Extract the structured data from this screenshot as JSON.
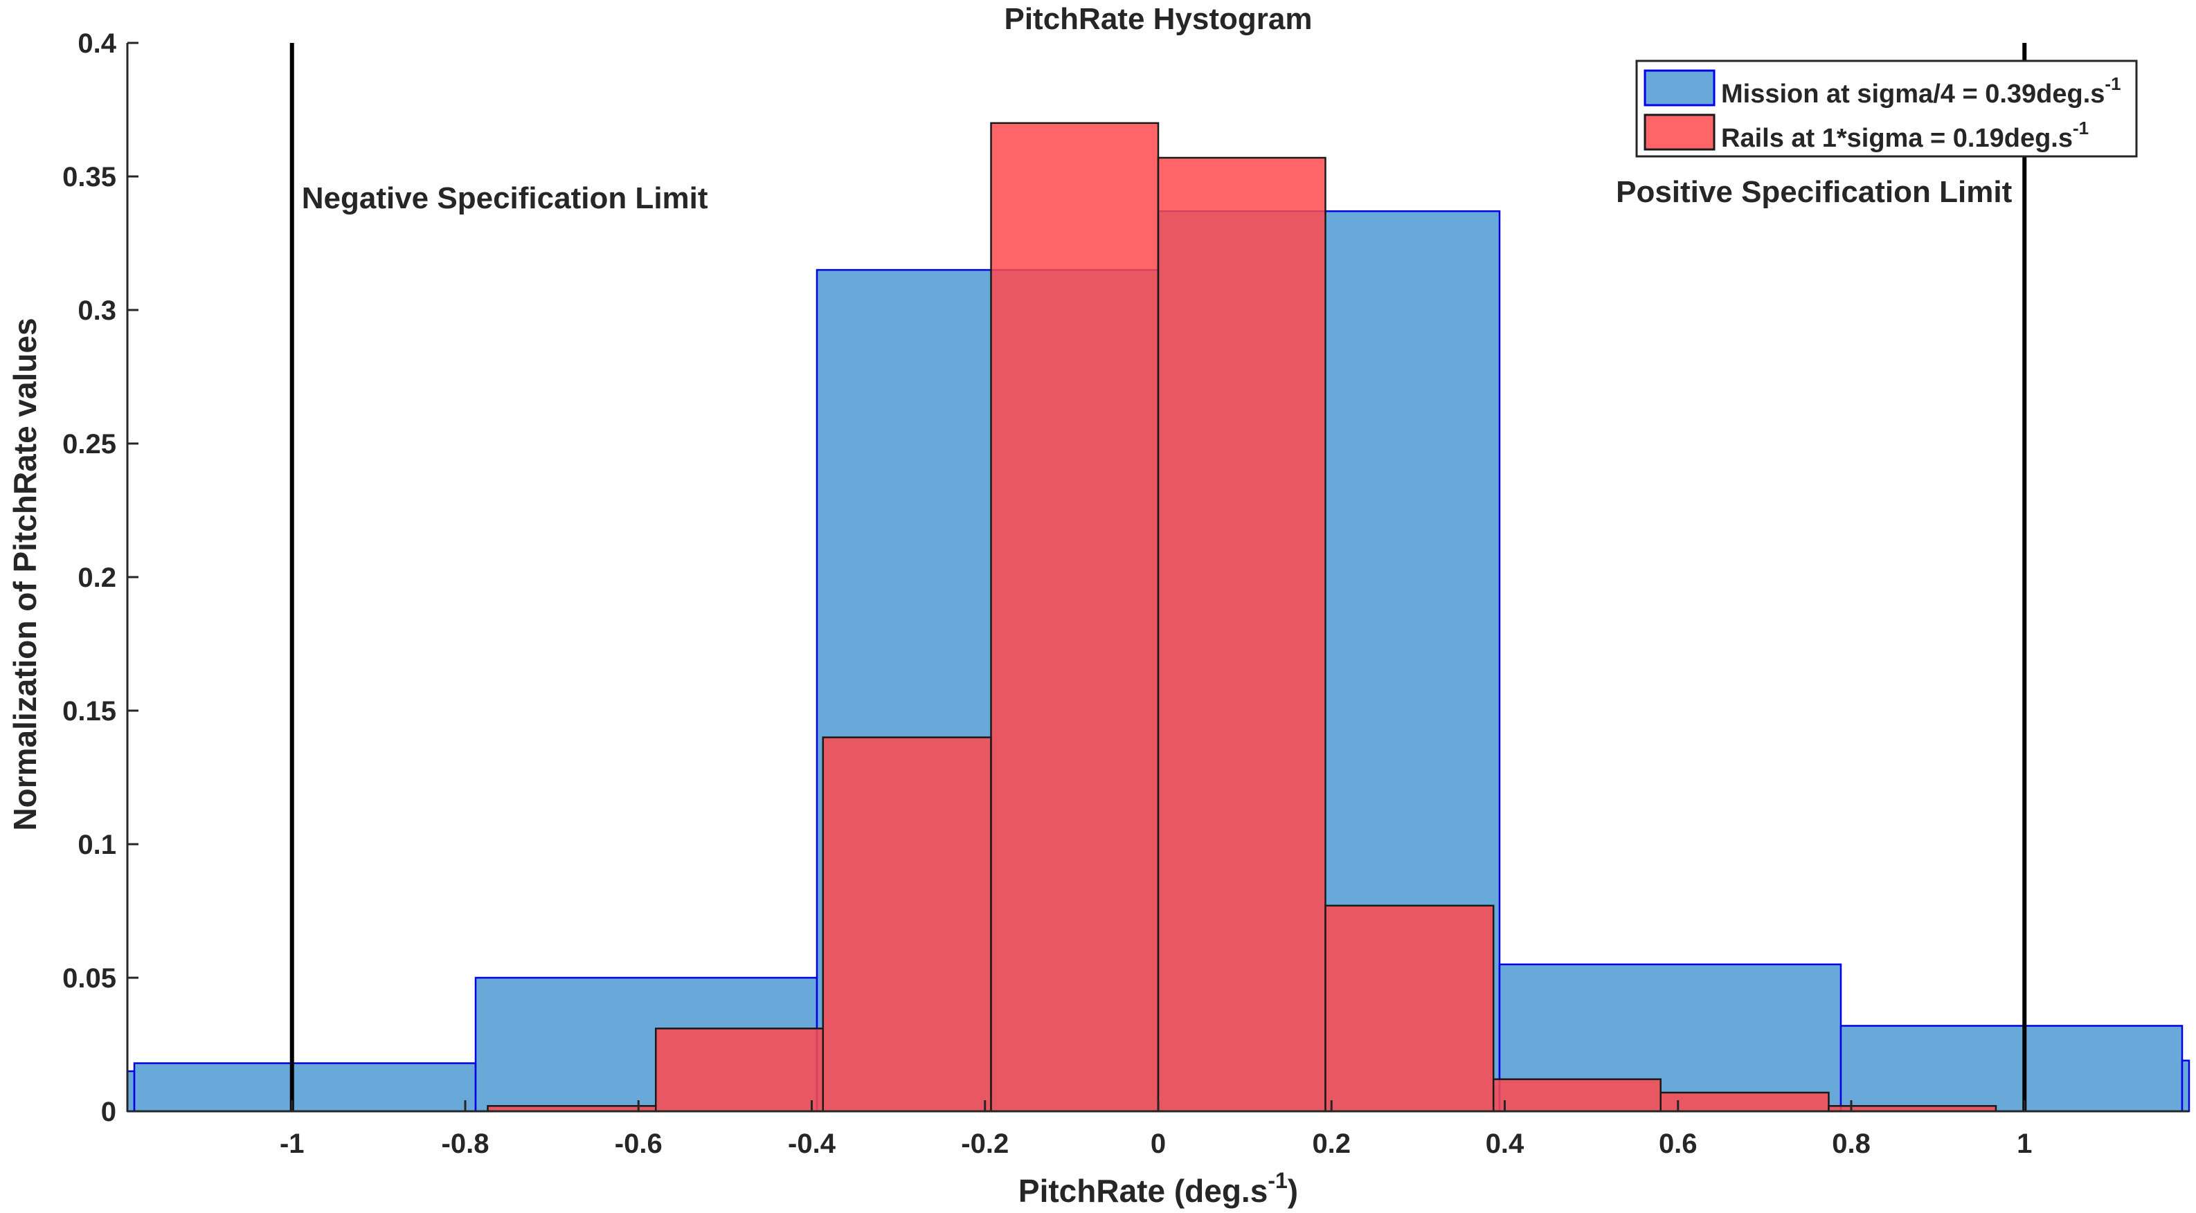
{
  "chart_data": {
    "type": "bar",
    "title": "PitchRate Hystogram",
    "xlabel": {
      "base": "PitchRate (deg.s",
      "sup": "-1",
      "tail": ")"
    },
    "ylabel": "Normalization of PitchRate values",
    "xlim": [
      -1.19,
      1.19
    ],
    "ylim": [
      0,
      0.4
    ],
    "xticks": [
      -1,
      -0.8,
      -0.6,
      -0.4,
      -0.2,
      0,
      0.2,
      0.4,
      0.6,
      0.8,
      1
    ],
    "xtick_labels": [
      "-1",
      "-0.8",
      "-0.6",
      "-0.4",
      "-0.2",
      "0",
      "0.2",
      "0.4",
      "0.6",
      "0.8",
      "1"
    ],
    "yticks": [
      0,
      0.05,
      0.1,
      0.15,
      0.2,
      0.25,
      0.3,
      0.35,
      0.4
    ],
    "ytick_labels": [
      "0",
      "0.05",
      "0.1",
      "0.15",
      "0.2",
      "0.25",
      "0.3",
      "0.35",
      "0.4"
    ],
    "legend_position": "top-right",
    "series": [
      {
        "name": "Mission at sigma/4 = 0.39deg.s",
        "name_sup": "-1",
        "color": "#4D9AD3",
        "edge": "#0000E6",
        "bins": [
          {
            "x0": -1.38,
            "x1": -1.182,
            "y": 0.015
          },
          {
            "x0": -1.182,
            "x1": -0.788,
            "y": 0.018
          },
          {
            "x0": -0.788,
            "x1": -0.394,
            "y": 0.05
          },
          {
            "x0": -0.394,
            "x1": 0.0,
            "y": 0.315
          },
          {
            "x0": 0.0,
            "x1": 0.394,
            "y": 0.337
          },
          {
            "x0": 0.394,
            "x1": 0.788,
            "y": 0.055
          },
          {
            "x0": 0.788,
            "x1": 1.182,
            "y": 0.032
          },
          {
            "x0": 1.182,
            "x1": 1.38,
            "y": 0.019
          }
        ]
      },
      {
        "name": "Rails at 1*sigma = 0.19deg.s",
        "name_sup": "-1",
        "color": "#FF4A4E",
        "edge": "#1A1A1A",
        "bins": [
          {
            "x0": -0.774,
            "x1": -0.58,
            "y": 0.002
          },
          {
            "x0": -0.58,
            "x1": -0.387,
            "y": 0.031
          },
          {
            "x0": -0.387,
            "x1": -0.193,
            "y": 0.14
          },
          {
            "x0": -0.193,
            "x1": 0.0,
            "y": 0.37
          },
          {
            "x0": 0.0,
            "x1": 0.193,
            "y": 0.357
          },
          {
            "x0": 0.193,
            "x1": 0.387,
            "y": 0.077
          },
          {
            "x0": 0.387,
            "x1": 0.58,
            "y": 0.012
          },
          {
            "x0": 0.58,
            "x1": 0.774,
            "y": 0.007
          },
          {
            "x0": 0.774,
            "x1": 0.967,
            "y": 0.002
          }
        ]
      }
    ],
    "spec_limits": [
      {
        "x": -1,
        "label": "Negative Specification Limit"
      },
      {
        "x": 1,
        "label": "Positive Specification Limit"
      }
    ]
  }
}
